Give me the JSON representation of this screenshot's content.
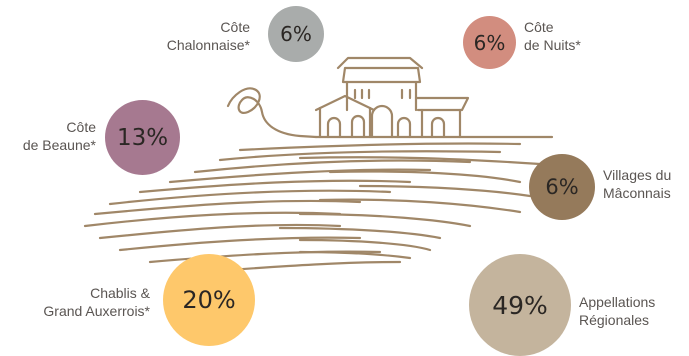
{
  "chart_data": {
    "type": "bubble",
    "regions": [
      {
        "name": [
          "Côte",
          "Chalonnaise*"
        ],
        "value": "6%",
        "color": "#a9acab"
      },
      {
        "name": [
          "Côte",
          "de Nuits*"
        ],
        "value": "6%",
        "color": "#d28d7f"
      },
      {
        "name": [
          "Côte",
          "de Beaune*"
        ],
        "value": "13%",
        "color": "#a67990"
      },
      {
        "name": [
          "Villages du",
          "Mâconnais"
        ],
        "value": "6%",
        "color": "#957a5b"
      },
      {
        "name": [
          "Chablis &",
          "Grand Auxerrois*"
        ],
        "value": "20%",
        "color": "#fec86b"
      },
      {
        "name": [
          "Appellations",
          "Régionales"
        ],
        "value": "49%",
        "color": "#c4b49d"
      }
    ]
  },
  "colors": {
    "line": "#a08768"
  }
}
